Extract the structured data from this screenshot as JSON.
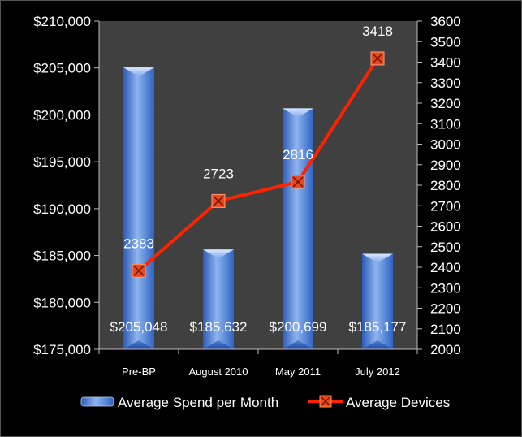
{
  "chart_data": {
    "type": "bar",
    "categories": [
      "Pre-BP",
      "August 2010",
      "May 2011",
      "July 2012"
    ],
    "series": [
      {
        "name": "Average Spend per Month",
        "kind": "bar",
        "axis": "left",
        "values": [
          205048,
          185632,
          200699,
          185177
        ],
        "labels": [
          "$205,048",
          "$185,632",
          "$200,699",
          "$185,177"
        ]
      },
      {
        "name": "Average Devices",
        "kind": "line",
        "axis": "right",
        "values": [
          2383,
          2723,
          2816,
          3418
        ],
        "labels": [
          "2383",
          "2723",
          "2816",
          "3418"
        ]
      }
    ],
    "y_left": {
      "ylim": [
        175000,
        210000
      ],
      "ticks": [
        "$175,000",
        "$180,000",
        "$185,000",
        "$190,000",
        "$195,000",
        "$200,000",
        "$205,000",
        "$210,000"
      ]
    },
    "y_right": {
      "ylim": [
        2000,
        3600
      ],
      "ticks": [
        "2000",
        "2100",
        "2200",
        "2300",
        "2400",
        "2500",
        "2600",
        "2700",
        "2800",
        "2900",
        "3000",
        "3100",
        "3200",
        "3300",
        "3400",
        "3500",
        "3600"
      ]
    },
    "legend": "bottom",
    "grid": false,
    "colors": {
      "plot_background": "#404040",
      "bar_light": "#8fb4ee",
      "bar_dark": "#2a5fc0",
      "line": "#ff2200",
      "marker": "#e84a20"
    }
  }
}
